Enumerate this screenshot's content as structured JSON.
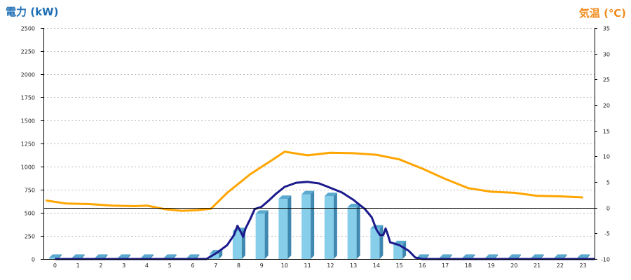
{
  "chart_data": {
    "type": "bar",
    "left_axis_label": "電力 (kW)",
    "right_axis_label": "気温 (℃)",
    "x": [
      0,
      1,
      2,
      3,
      4,
      5,
      6,
      7,
      8,
      9,
      10,
      11,
      12,
      13,
      14,
      15,
      16,
      17,
      18,
      19,
      20,
      21,
      22,
      23
    ],
    "x_tick_labels": [
      "0",
      "1",
      "2",
      "3",
      "4",
      "5",
      "6",
      "7",
      "8",
      "9",
      "10",
      "11",
      "12",
      "13",
      "14",
      "15",
      "16",
      "17",
      "18",
      "19",
      "20",
      "21",
      "22",
      "23"
    ],
    "y_left_lim": [
      0,
      2500
    ],
    "y_left_ticks": [
      "0",
      "250",
      "500",
      "750",
      "1000",
      "1250",
      "1500",
      "1750",
      "2000",
      "2250",
      "2500"
    ],
    "y_right_lim": [
      -10,
      35
    ],
    "y_right_ticks": [
      "-10",
      "-5",
      "0",
      "5",
      "10",
      "15",
      "20",
      "25",
      "30",
      "35"
    ],
    "grid": "horizontal dotted",
    "bar_series": {
      "axis": "left",
      "values": [
        12,
        12,
        12,
        12,
        12,
        12,
        12,
        60,
        300,
        490,
        650,
        700,
        680,
        560,
        330,
        160,
        12,
        12,
        12,
        12,
        12,
        12,
        12,
        12
      ],
      "color": "#87ceeb"
    },
    "line_series": [
      {
        "axis": "left",
        "color": "#1a1a8c",
        "points": [
          [
            0,
            0
          ],
          [
            6.6,
            0
          ],
          [
            7.1,
            75
          ],
          [
            7.5,
            150
          ],
          [
            7.8,
            260
          ],
          [
            7.95,
            360
          ],
          [
            8.1,
            290
          ],
          [
            8.2,
            240
          ],
          [
            8.3,
            330
          ],
          [
            8.5,
            430
          ],
          [
            8.7,
            540
          ],
          [
            9.0,
            565
          ],
          [
            9.3,
            630
          ],
          [
            9.6,
            700
          ],
          [
            10.0,
            780
          ],
          [
            10.5,
            825
          ],
          [
            11.0,
            835
          ],
          [
            11.5,
            818
          ],
          [
            12.0,
            770
          ],
          [
            12.5,
            720
          ],
          [
            13.0,
            640
          ],
          [
            13.5,
            540
          ],
          [
            13.8,
            450
          ],
          [
            14.0,
            320
          ],
          [
            14.15,
            260
          ],
          [
            14.3,
            260
          ],
          [
            14.4,
            330
          ],
          [
            14.5,
            260
          ],
          [
            14.6,
            180
          ],
          [
            15.0,
            150
          ],
          [
            15.4,
            90
          ],
          [
            15.7,
            15
          ],
          [
            16.0,
            0
          ],
          [
            23.5,
            0
          ]
        ]
      },
      {
        "axis": "right",
        "color": "#ffa500",
        "points": [
          [
            -0.4,
            1.4
          ],
          [
            0.5,
            0.8
          ],
          [
            1.5,
            0.7
          ],
          [
            2.5,
            0.4
          ],
          [
            3.5,
            0.3
          ],
          [
            4.0,
            0.4
          ],
          [
            4.8,
            -0.3
          ],
          [
            5.5,
            -0.6
          ],
          [
            6.2,
            -0.5
          ],
          [
            6.8,
            -0.2
          ],
          [
            7.5,
            2.9
          ],
          [
            8.5,
            6.5
          ],
          [
            9.5,
            9.4
          ],
          [
            10.0,
            10.9
          ],
          [
            11.0,
            10.2
          ],
          [
            12.0,
            10.7
          ],
          [
            13.0,
            10.6
          ],
          [
            14.0,
            10.3
          ],
          [
            15.0,
            9.4
          ],
          [
            16.0,
            7.6
          ],
          [
            17.0,
            5.6
          ],
          [
            18.0,
            3.8
          ],
          [
            19.0,
            3.1
          ],
          [
            20.0,
            2.9
          ],
          [
            21.0,
            2.3
          ],
          [
            22.0,
            2.2
          ],
          [
            23.0,
            2.0
          ]
        ]
      }
    ],
    "zero_reference": {
      "axis": "right",
      "value": 0
    }
  }
}
